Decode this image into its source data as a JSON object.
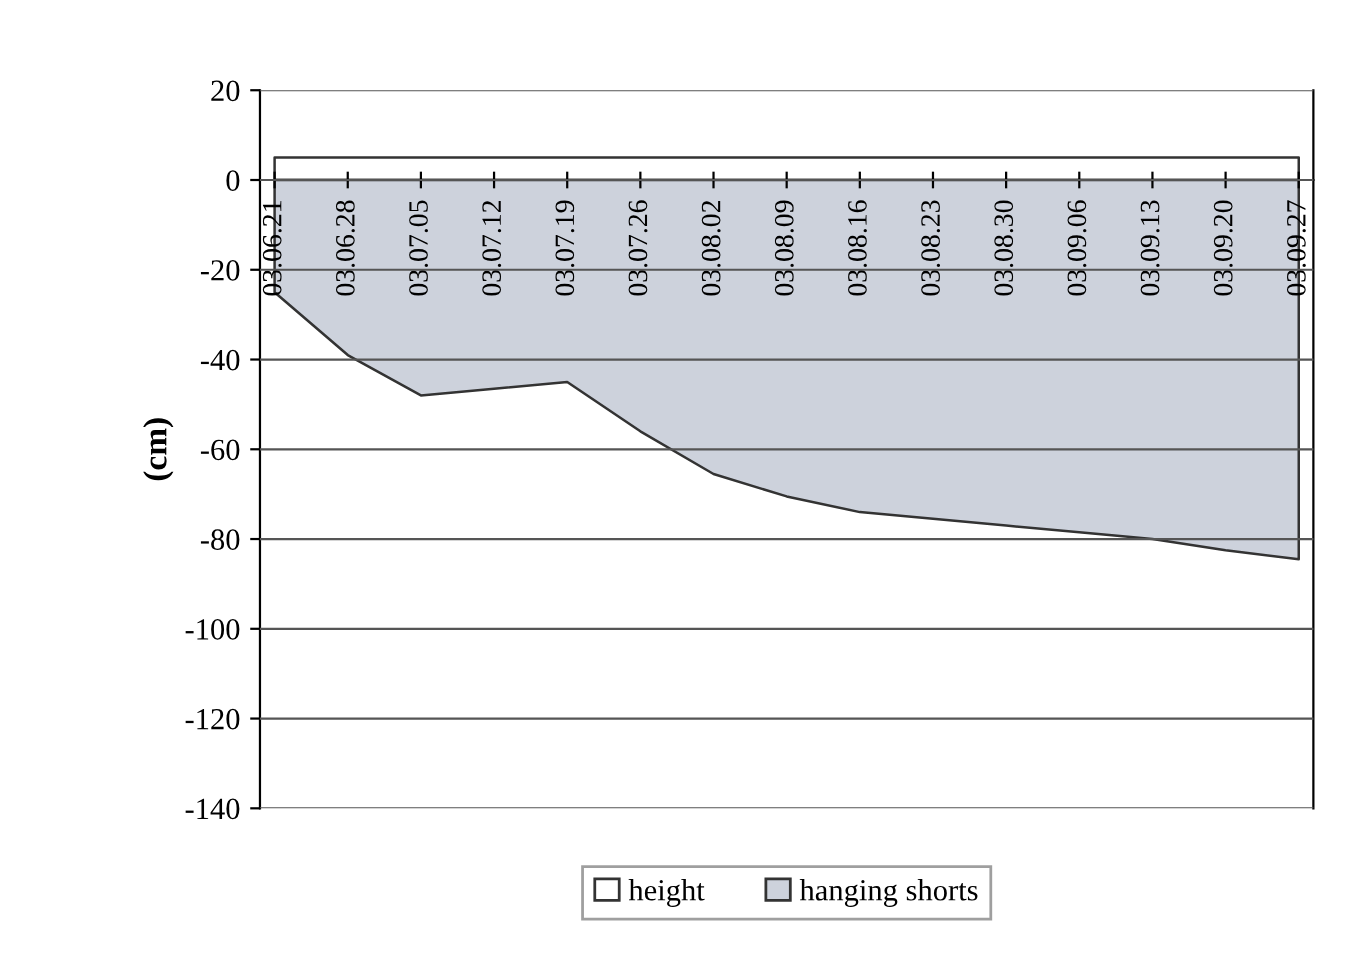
{
  "chart_data": {
    "type": "area",
    "ylabel": "(cm)",
    "categories": [
      "03.06.21",
      "03.06.28",
      "03.07.05",
      "03.07.12",
      "03.07.19",
      "03.07.26",
      "03.08.02",
      "03.08.09",
      "03.08.16",
      "03.08.23",
      "03.08.30",
      "03.09.06",
      "03.09.13",
      "03.09.20",
      "03.09.27"
    ],
    "series": [
      {
        "name": "height",
        "color": "#ffffff",
        "values": [
          5,
          5,
          5,
          5,
          5,
          5,
          5,
          5,
          5,
          5,
          5,
          5,
          5,
          5,
          5
        ]
      },
      {
        "name": "hanging shorts",
        "color": "#cdd2dc",
        "values": [
          -25,
          -39,
          -48,
          -46.5,
          -45,
          -56,
          -65.5,
          -70.5,
          -74,
          -75.5,
          -77,
          -78.5,
          -80,
          -82.5,
          -84.5
        ]
      }
    ],
    "ylim": [
      -140,
      20
    ],
    "yticks": [
      -140,
      -120,
      -100,
      -80,
      -60,
      -40,
      -20,
      0,
      20
    ],
    "grid": "y",
    "legend": "bottom"
  }
}
